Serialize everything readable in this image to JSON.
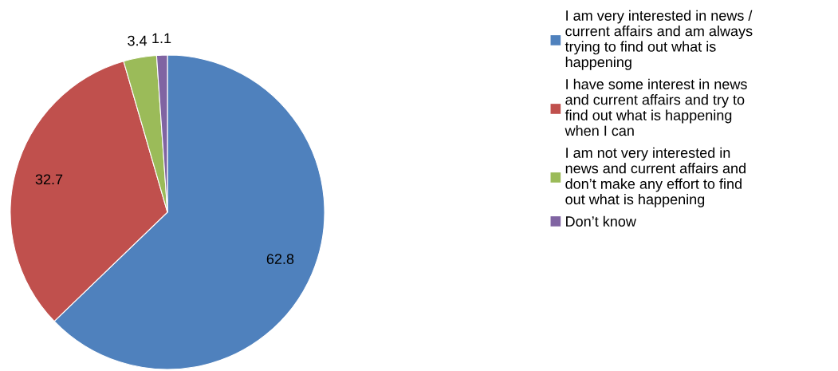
{
  "chart_data": {
    "type": "pie",
    "categories": [
      "I am very interested in news / current affairs and am always trying to find out what is happening",
      "I have some interest in news and current affairs and try to find out what is happening when I can",
      "I am not very interested in news and current affairs and don’t make any effort to find out what is happening",
      "Don’t know"
    ],
    "values": [
      62.8,
      32.7,
      3.4,
      1.1
    ],
    "colors": [
      "#4f81bd",
      "#c0504d",
      "#9bbb59",
      "#8064a2"
    ],
    "data_labels": true,
    "legend": "right"
  }
}
